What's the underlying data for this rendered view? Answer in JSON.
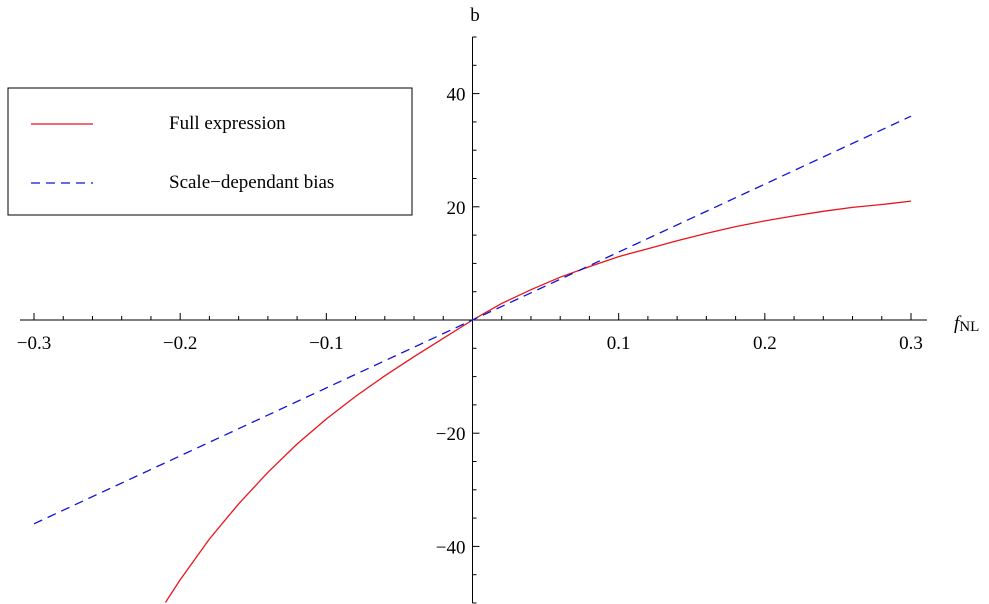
{
  "chart_data": {
    "type": "line",
    "title": "",
    "xlabel": "f_NL",
    "xlabel_main": "f",
    "xlabel_sub": "NL",
    "ylabel": "b",
    "xlim": [
      -0.3,
      0.3
    ],
    "ylim": [
      -50,
      50
    ],
    "x_ticks": [
      {
        "value": -0.3,
        "label": "−0.3"
      },
      {
        "value": -0.2,
        "label": "−0.2"
      },
      {
        "value": -0.1,
        "label": "−0.1"
      },
      {
        "value": 0.1,
        "label": "0.1"
      },
      {
        "value": 0.2,
        "label": "0.2"
      },
      {
        "value": 0.3,
        "label": "0.3"
      }
    ],
    "y_ticks": [
      {
        "value": -40,
        "label": "−40"
      },
      {
        "value": -20,
        "label": "−20"
      },
      {
        "value": 20,
        "label": "20"
      },
      {
        "value": 40,
        "label": "40"
      }
    ],
    "grid": false,
    "legend_position": "top-left",
    "series": [
      {
        "name": "Full expression",
        "color": "#e8141c",
        "dash": "solid",
        "x": [
          -0.21,
          -0.2,
          -0.18,
          -0.16,
          -0.14,
          -0.12,
          -0.1,
          -0.08,
          -0.06,
          -0.04,
          -0.02,
          0,
          0.02,
          0.04,
          0.06,
          0.08,
          0.1,
          0.12,
          0.14,
          0.16,
          0.18,
          0.2,
          0.22,
          0.24,
          0.26,
          0.28,
          0.3
        ],
        "y": [
          -49.9,
          -45.9,
          -38.7,
          -32.5,
          -26.9,
          -21.9,
          -17.5,
          -13.5,
          -9.85,
          -6.49,
          -3.23,
          0,
          2.94,
          5.35,
          7.56,
          9.43,
          11.2,
          12.6,
          14.0,
          15.3,
          16.5,
          17.5,
          18.4,
          19.2,
          19.9,
          20.4,
          21.0
        ]
      },
      {
        "name": "Scale−dependant bias",
        "color": "#1212d9",
        "dash": "dashed",
        "x": [
          -0.3,
          0.3
        ],
        "y": [
          -36.0,
          36.0
        ]
      }
    ]
  }
}
